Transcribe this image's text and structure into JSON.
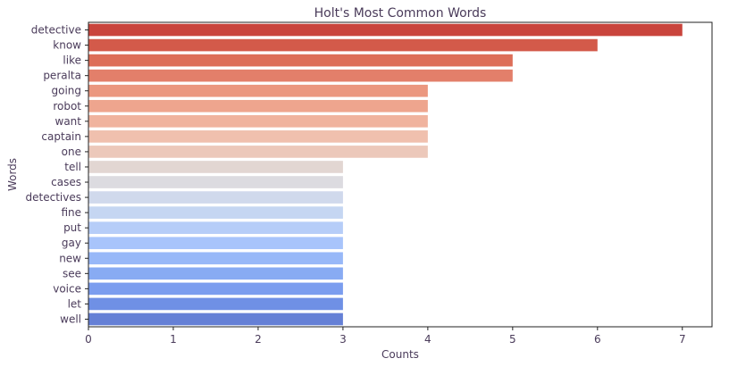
{
  "chart_data": {
    "type": "bar",
    "orientation": "horizontal",
    "title": "Holt's Most Common Words",
    "xlabel": "Counts",
    "ylabel": "Words",
    "xlim": [
      0,
      7.35
    ],
    "xticks": [
      0,
      1,
      2,
      3,
      4,
      5,
      6,
      7
    ],
    "grid": false,
    "categories": [
      "detective",
      "know",
      "like",
      "peralta",
      "going",
      "robot",
      "want",
      "captain",
      "one",
      "tell",
      "cases",
      "detectives",
      "fine",
      "put",
      "gay",
      "new",
      "see",
      "voice",
      "let",
      "well"
    ],
    "values": [
      7,
      6,
      5,
      5,
      4,
      4,
      4,
      4,
      4,
      3,
      3,
      3,
      3,
      3,
      3,
      3,
      3,
      3,
      3,
      3
    ],
    "colors": [
      "#c9443c",
      "#d35a4a",
      "#dd6e58",
      "#e37f6a",
      "#eb977f",
      "#eea58e",
      "#f0b39e",
      "#f0c0ae",
      "#ecc8ba",
      "#e2d6d2",
      "#dcdbe0",
      "#d0d9ec",
      "#c5d6f2",
      "#b6cdf8",
      "#a8c4fb",
      "#98b8f8",
      "#88abf3",
      "#7b9def",
      "#6f90e5",
      "#6580d6"
    ],
    "palette": "coolwarm_r"
  }
}
